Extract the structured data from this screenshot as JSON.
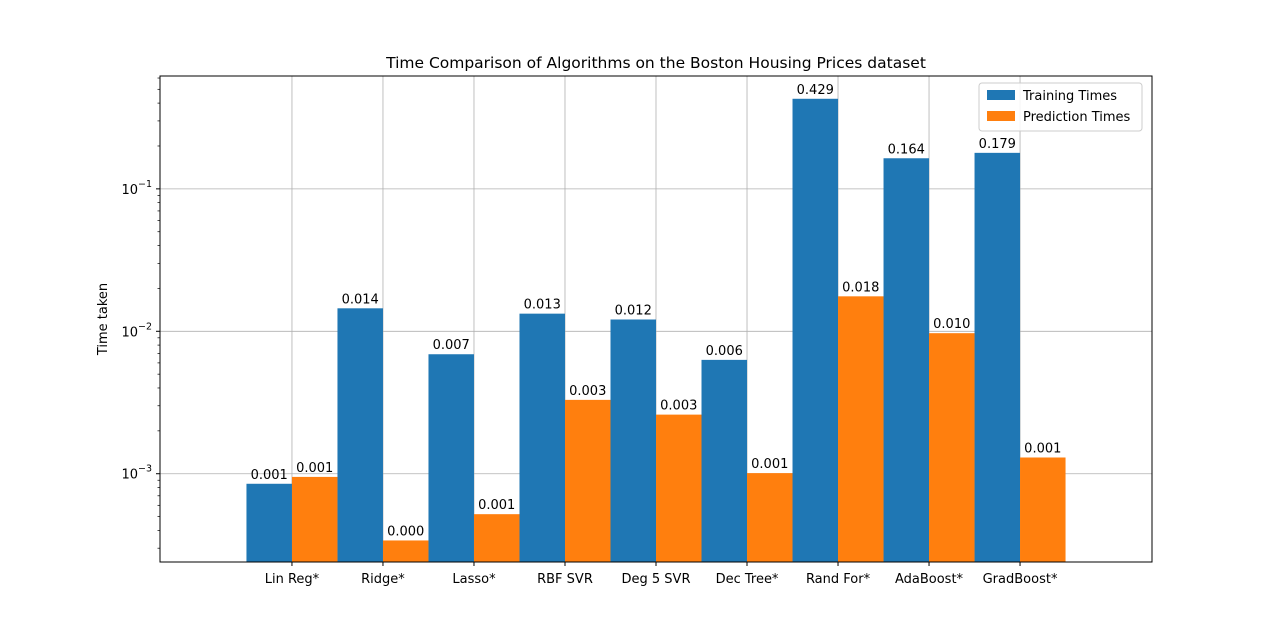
{
  "chart_data": {
    "type": "bar",
    "title": "Time Comparison of Algorithms on the Boston Housing Prices dataset",
    "xlabel": "",
    "ylabel": "Time taken",
    "yscale": "log",
    "ylim": [
      0.00024,
      0.62
    ],
    "y_ticks": [
      {
        "value": 0.001,
        "base": "10",
        "exp": "−3"
      },
      {
        "value": 0.01,
        "base": "10",
        "exp": "−2"
      },
      {
        "value": 0.1,
        "base": "10",
        "exp": "−1"
      }
    ],
    "grid": true,
    "legend_position": "top-right",
    "categories": [
      "Lin Reg*",
      "Ridge*",
      "Lasso*",
      "RBF SVR",
      "Deg 5 SVR",
      "Dec Tree*",
      "Rand For*",
      "AdaBoost*",
      "GradBoost*"
    ],
    "series": [
      {
        "name": "Training Times",
        "color": "#1f77b4",
        "values": [
          0.00085,
          0.0145,
          0.0069,
          0.0133,
          0.0121,
          0.0063,
          0.429,
          0.164,
          0.179
        ],
        "labels": [
          "0.001",
          "0.014",
          "0.007",
          "0.013",
          "0.012",
          "0.006",
          "0.429",
          "0.164",
          "0.179"
        ]
      },
      {
        "name": "Prediction Times",
        "color": "#ff7f0e",
        "values": [
          0.00095,
          0.00034,
          0.00052,
          0.0033,
          0.0026,
          0.00101,
          0.0176,
          0.0097,
          0.0013
        ],
        "labels": [
          "0.001",
          "0.000",
          "0.001",
          "0.003",
          "0.003",
          "0.001",
          "0.018",
          "0.010",
          "0.001"
        ]
      }
    ]
  }
}
